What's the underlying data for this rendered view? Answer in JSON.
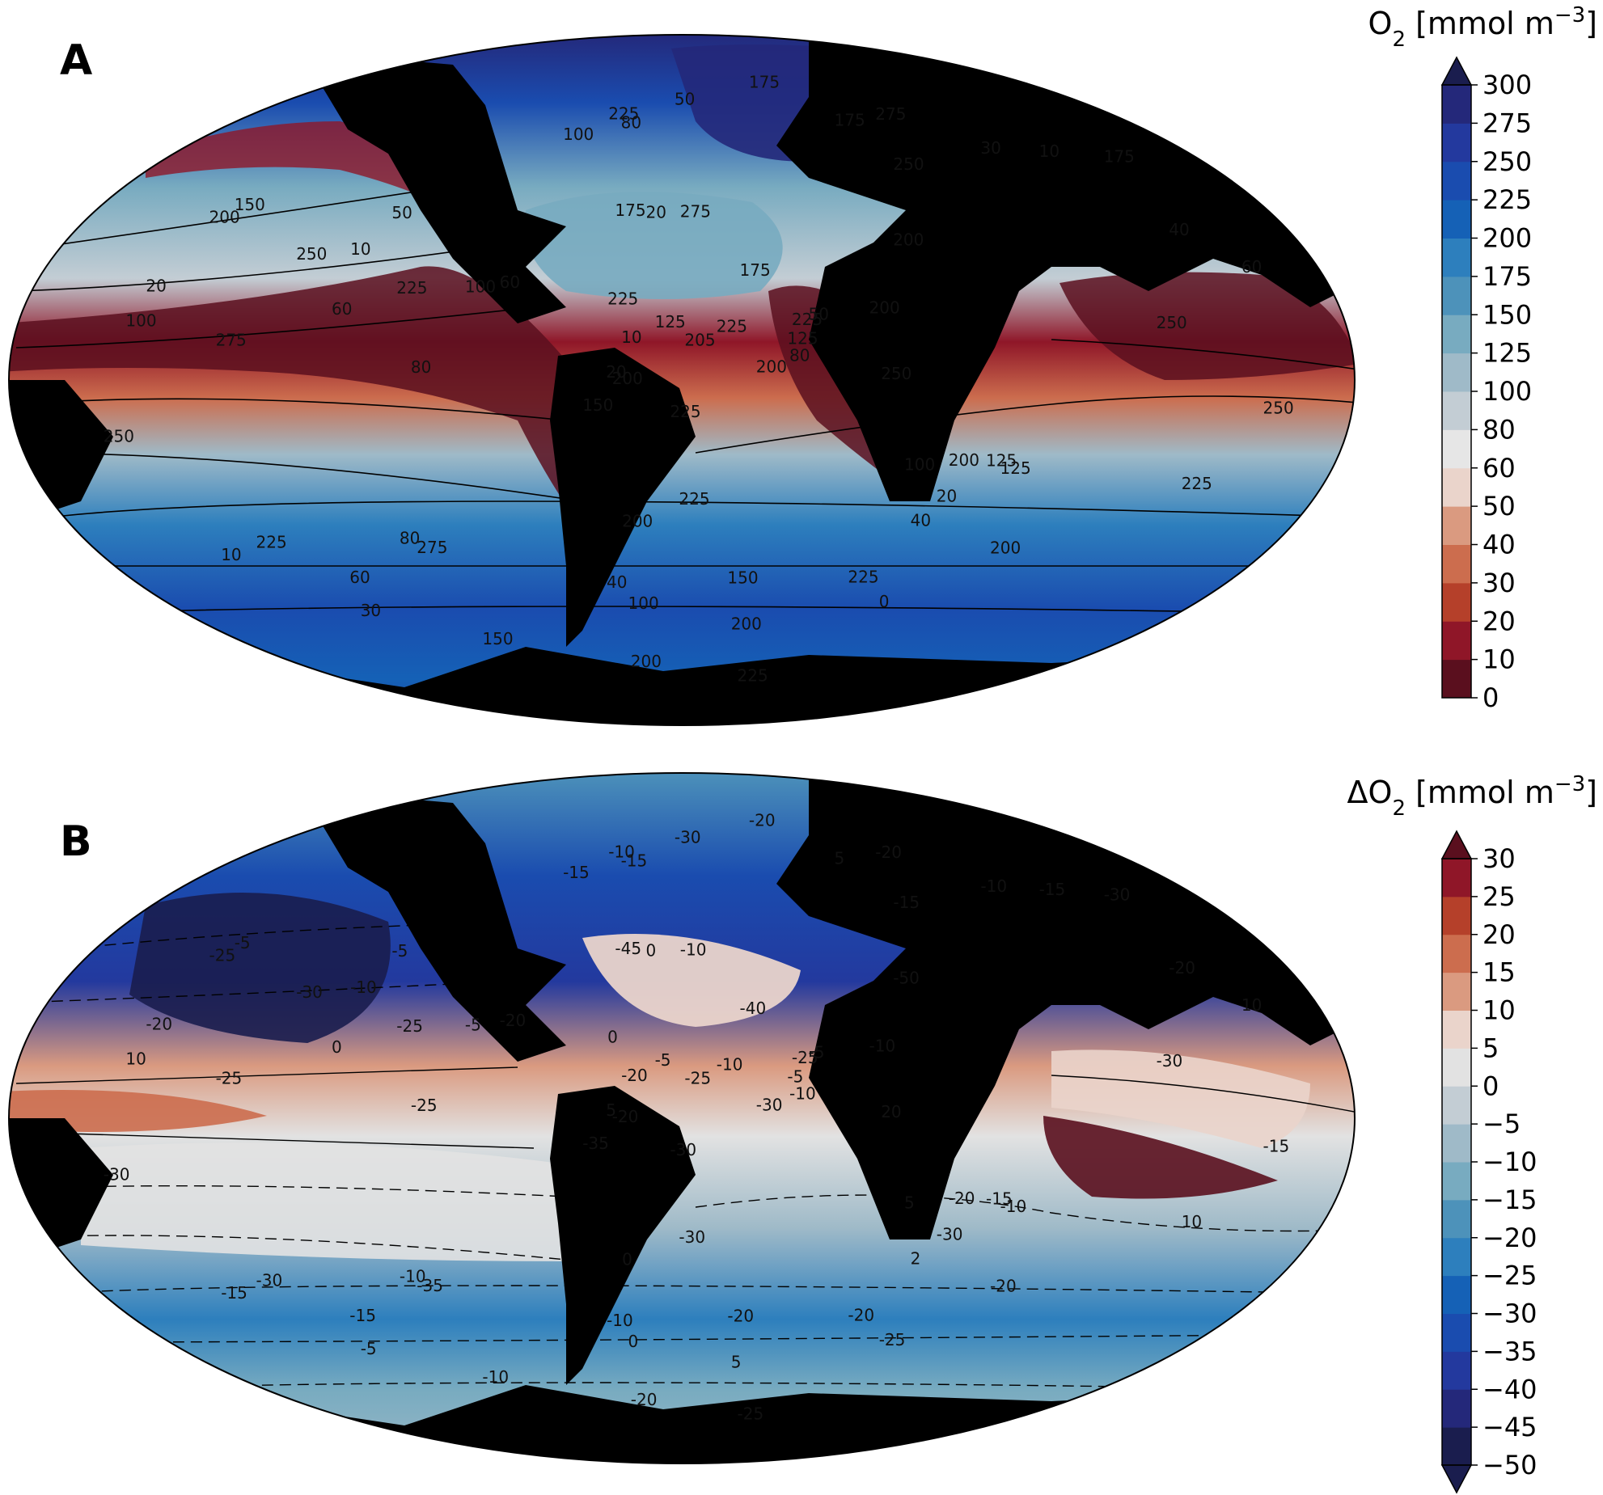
{
  "panels": [
    {
      "id": "A",
      "letter": "A",
      "colorbar": {
        "title_prefix": "O",
        "title_sub": "2",
        "title_unit": " [mmol m",
        "title_sup": "−3",
        "title_close": "]",
        "levels": [
          0,
          10,
          20,
          30,
          40,
          50,
          60,
          80,
          100,
          125,
          150,
          175,
          200,
          225,
          250,
          275,
          300
        ],
        "tick_labels": [
          "0",
          "10",
          "20",
          "30",
          "40",
          "50",
          "60",
          "80",
          "100",
          "125",
          "150",
          "175",
          "200",
          "225",
          "250",
          "275",
          "300"
        ],
        "colors": [
          "#5a0f1e",
          "#8f1628",
          "#b5402a",
          "#cc6d4e",
          "#da9a80",
          "#ead4cb",
          "#e6e6e6",
          "#c3cdd4",
          "#9fbac8",
          "#78abc0",
          "#4d92ba",
          "#2d7fbd",
          "#1561b6",
          "#1a4caf",
          "#23399e",
          "#24287a",
          "#1a1d4e"
        ],
        "extend": "max"
      },
      "contour_labels": [
        "225",
        "200",
        "200",
        "225",
        "275",
        "275",
        "275",
        "250",
        "200",
        "275",
        "150",
        "200",
        "175",
        "175",
        "225",
        "60",
        "30",
        "20",
        "50",
        "125",
        "150",
        "80",
        "100",
        "100",
        "60",
        "20",
        "40",
        "10",
        "50",
        "30",
        "80",
        "125",
        "175",
        "100",
        "60",
        "40",
        "125",
        "100",
        "80",
        "10",
        "40",
        "20",
        "0",
        "60",
        "150",
        "175",
        "50",
        "80",
        "20",
        "10",
        "10",
        "175",
        "100",
        "125",
        "200",
        "150",
        "200",
        "225",
        "250",
        "250",
        "225",
        "200",
        "225",
        "250",
        "225",
        "200",
        "250",
        "225",
        "225",
        "225",
        "225",
        "250",
        "200",
        "200",
        "205"
      ]
    },
    {
      "id": "B",
      "letter": "B",
      "colorbar": {
        "title_prefix": "ΔO",
        "title_sub": "2",
        "title_unit": " [mmol m",
        "title_sup": "−3",
        "title_close": "]",
        "levels": [
          -50,
          -45,
          -40,
          -35,
          -30,
          -25,
          -20,
          -15,
          -10,
          -5,
          0,
          5,
          10,
          15,
          20,
          25,
          30
        ],
        "tick_labels": [
          "−50",
          "−45",
          "−40",
          "−35",
          "−30",
          "−25",
          "−20",
          "−15",
          "−10",
          "−5",
          "0",
          "5",
          "10",
          "15",
          "20",
          "25",
          "30"
        ],
        "colors": [
          "#1a1d4e",
          "#24287a",
          "#23399e",
          "#1a4caf",
          "#1561b6",
          "#2d7fbd",
          "#4d92ba",
          "#78abc0",
          "#9fbac8",
          "#c3cdd4",
          "#e2e2e2",
          "#ead4cb",
          "#da9a80",
          "#cc6d4e",
          "#b5402a",
          "#8f1628",
          "#5a0f1e"
        ],
        "extend": "both"
      },
      "contour_labels": [
        "-30",
        "-25",
        "-20",
        "-25",
        "-35",
        "-20",
        "-10",
        "-15",
        "-30",
        "-25",
        "-35",
        "-50",
        "-45",
        "-40",
        "-30",
        "-20",
        "-5",
        "0",
        "-5",
        "-10",
        "-5",
        "-15",
        "10",
        "5",
        "10",
        "5",
        "-10",
        "-20",
        "-5",
        "-10",
        "-10",
        "-15",
        "-20",
        "-5",
        "0",
        "2",
        "-5",
        "0",
        "-10",
        "-15",
        "-20",
        "-30",
        "-25",
        "-15",
        "-20",
        "-30",
        "-30",
        "-25",
        "-20",
        "-10",
        "-15",
        "5",
        "-15",
        "-5",
        "0",
        "-10",
        "-20",
        "-25",
        "-30",
        "-30",
        "0",
        "5",
        "-10",
        "20",
        "10",
        "-20",
        "-30",
        "-30",
        "-25",
        "-20",
        "-10",
        "-15",
        "-10",
        "-20",
        "-25"
      ]
    }
  ]
}
